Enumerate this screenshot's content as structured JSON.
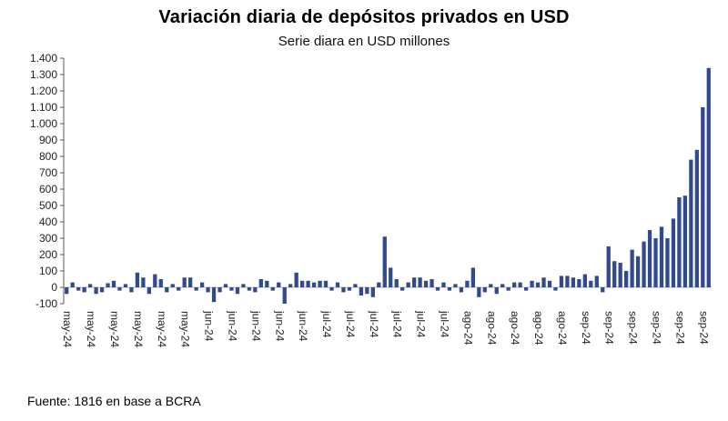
{
  "chart_data": {
    "type": "bar",
    "title": "Variación diaria de depósitos privados en USD",
    "subtitle": "Serie diara en USD millones",
    "source": "Fuente: 1816 en base a BCRA",
    "xlabel": "",
    "ylabel": "",
    "ylim": [
      -100,
      1400
    ],
    "ytick_step": 100,
    "ytick_labels": [
      "1.400",
      "1.300",
      "1.200",
      "1.100",
      "1.000",
      "900",
      "800",
      "700",
      "600",
      "500",
      "400",
      "300",
      "200",
      "100",
      "0",
      "-100"
    ],
    "grid": false,
    "legend": false,
    "bar_color": "#31498f",
    "axis_color": "#595959",
    "zero_line_color": "#9a9a9a",
    "values": [
      -40,
      30,
      -20,
      -30,
      20,
      -40,
      -30,
      25,
      40,
      -20,
      20,
      -30,
      90,
      60,
      -40,
      80,
      50,
      -30,
      20,
      -20,
      60,
      60,
      -20,
      30,
      -30,
      -90,
      -30,
      20,
      -20,
      -40,
      20,
      -20,
      -30,
      50,
      40,
      -20,
      30,
      -100,
      20,
      90,
      40,
      40,
      30,
      40,
      40,
      -20,
      30,
      -30,
      -20,
      20,
      -50,
      -40,
      -60,
      30,
      310,
      120,
      50,
      -20,
      30,
      60,
      60,
      40,
      50,
      -20,
      30,
      -20,
      20,
      -30,
      40,
      120,
      -60,
      -30,
      20,
      -40,
      20,
      -20,
      30,
      30,
      -20,
      40,
      30,
      60,
      40,
      -20,
      70,
      70,
      60,
      50,
      80,
      40,
      70,
      -30,
      250,
      160,
      150,
      100,
      230,
      190,
      280,
      350,
      300,
      370,
      300,
      420,
      550,
      560,
      780,
      840,
      1100,
      1340
    ],
    "xtick_index": [
      0,
      4,
      8,
      12,
      16,
      20,
      24,
      28,
      32,
      36,
      40,
      44,
      48,
      52,
      56,
      60,
      64,
      68,
      72,
      76,
      80,
      84,
      88,
      92,
      96,
      100,
      104,
      108
    ],
    "xtick_labels": [
      "may-24",
      "may-24",
      "may-24",
      "may-24",
      "may-24",
      "may-24",
      "jun-24",
      "jun-24",
      "jun-24",
      "jun-24",
      "jun-24",
      "jul-24",
      "jul-24",
      "jul-24",
      "jul-24",
      "jul-24",
      "jul-24",
      "ago-24",
      "ago-24",
      "ago-24",
      "ago-24",
      "ago-24",
      "sep-24",
      "sep-24",
      "sep-24",
      "sep-24",
      "sep-24",
      "sep-24"
    ]
  }
}
